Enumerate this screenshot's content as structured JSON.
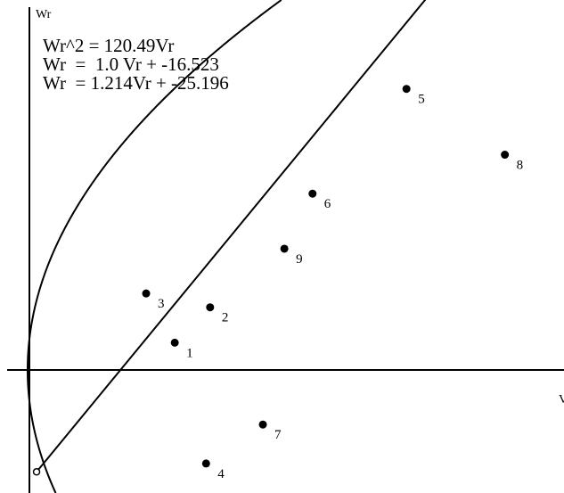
{
  "chart_data": {
    "type": "scatter",
    "ylabel": "Wr",
    "xlabel": "V",
    "equations": [
      "Wr^2 = 120.49Vr",
      "Wr  =  1.0 Vr + -16.523",
      "Wr  = 1.214Vr + -25.196"
    ],
    "xlim": [
      -3,
      121
    ],
    "ylim": [
      -27,
      80
    ],
    "grid": false,
    "points": [
      {
        "label": "1",
        "x": 32.9,
        "y": 6.1
      },
      {
        "label": "2",
        "x": 40.8,
        "y": 14.0
      },
      {
        "label": "3",
        "x": 26.5,
        "y": 17.1
      },
      {
        "label": "4",
        "x": 39.9,
        "y": -20.9
      },
      {
        "label": "5",
        "x": 84.7,
        "y": 62.8
      },
      {
        "label": "6",
        "x": 63.7,
        "y": 39.4
      },
      {
        "label": "7",
        "x": 52.6,
        "y": -12.2
      },
      {
        "label": "8",
        "x": 106.7,
        "y": 48.1
      },
      {
        "label": "9",
        "x": 57.4,
        "y": 27.1
      }
    ],
    "series": [
      {
        "equation": "Wr^2 = 120.49Vr",
        "kind": "parabola",
        "k": 120.49
      },
      {
        "equation": "Wr  =  1.0 Vr + -16.523",
        "kind": "line",
        "slope": 1.0,
        "intercept": -16.523
      },
      {
        "equation": "Wr  = 1.214Vr + -25.196",
        "kind": "line",
        "slope": 1.214,
        "intercept": -25.196
      }
    ]
  }
}
